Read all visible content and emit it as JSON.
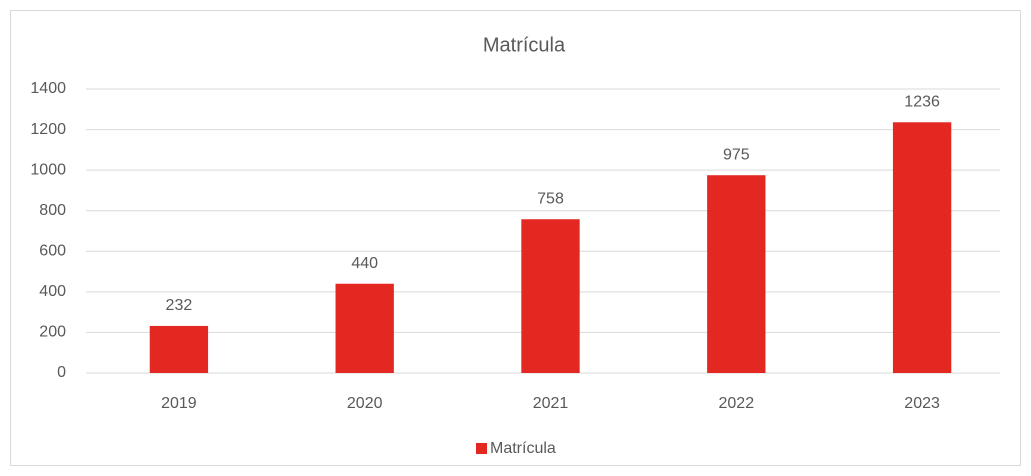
{
  "chart_data": {
    "type": "bar",
    "title": "Matrícula",
    "categories": [
      "2019",
      "2020",
      "2021",
      "2022",
      "2023"
    ],
    "series": [
      {
        "name": "Matrícula",
        "color": "#e32822",
        "values": [
          232,
          440,
          758,
          975,
          1236
        ]
      }
    ],
    "ylim": [
      0,
      1400
    ],
    "yticks": [
      0,
      200,
      400,
      600,
      800,
      1000,
      1200,
      1400
    ],
    "grid": true,
    "legend": "bottom"
  }
}
